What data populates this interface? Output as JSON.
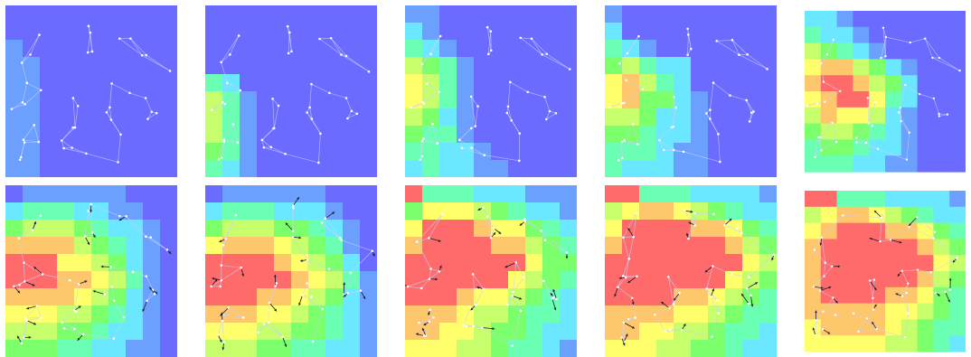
{
  "figure": {
    "panels": [
      {
        "id": 1,
        "grid": [
          "0000000000",
          "0000000000",
          "1000000000",
          "1100000000",
          "1100000000",
          "1100000000",
          "1100000000",
          "1100000000",
          "1100000000",
          "1100000000"
        ]
      },
      {
        "id": 2,
        "grid": [
          "0000000000",
          "0000000000",
          "0000000000",
          "0000000000",
          "3200000000",
          "5310000000",
          "5310000000",
          "5310000000",
          "4310000000",
          "3210000000"
        ]
      },
      {
        "id": 3,
        "grid": [
          "1100000000",
          "2100000000",
          "3210000000",
          "5431000000",
          "6531000000",
          "6531000000",
          "5421000000",
          "4331000000",
          "3322100000",
          "2322110000"
        ]
      },
      {
        "id": 4,
        "grid": [
          "1000000000",
          "2000000000",
          "3210000000",
          "4532200000",
          "6753200000",
          "6744210000",
          "5542210000",
          "4432210000",
          "3332110000",
          "3222110000"
        ]
      },
      {
        "id": 5,
        "grid": [
          "2210000000",
          "3221000000",
          "5432100000",
          "6775421000",
          "7887542000",
          "6788632000",
          "5766521000",
          "4554321000",
          "3443221000",
          "3332211000"
        ]
      },
      {
        "id": 6,
        "grid": [
          "0111111000",
          "2333221100",
          "4555432210",
          "7777543210",
          "8886654210",
          "8887765310",
          "7777654210",
          "6665543210",
          "5554432210",
          "4443322110"
        ]
      },
      {
        "id": 7,
        "grid": [
          "0111111000",
          "2333222100",
          "4555443210",
          "6777654310",
          "8888765420",
          "8888876531",
          "8887765421",
          "7776654321",
          "6665544321",
          "5554433221"
        ]
      },
      {
        "id": 8,
        "grid": [
          "8333222111",
          "4666543221",
          "6888766432",
          "7888877543",
          "8888888644",
          "8888886543",
          "8887665432",
          "7776554332",
          "7766544322",
          "6665543321"
        ]
      },
      {
        "id": 9,
        "grid": [
          "8833322221",
          "5677654322",
          "6888877643",
          "7888888754",
          "8888888865",
          "8888888654",
          "8888776543",
          "7777665433",
          "7766554332",
          "6665544322"
        ]
      },
      {
        "id": 10,
        "grid": [
          "8833322221",
          "5677654322",
          "6788877643",
          "7888888754",
          "7888888865",
          "7888888754",
          "7888877643",
          "7777766543",
          "6777765433",
          "6666655432"
        ]
      }
    ]
  },
  "colors": {
    "palette": [
      "#6b6bff",
      "#6ba0ff",
      "#6be8ff",
      "#6bffb4",
      "#7bff6b",
      "#c6ff6b",
      "#ffff6b",
      "#ffc76b",
      "#ff6b6b"
    ],
    "node": "#ffffff",
    "edge": "#c8d0ff",
    "arrow": "#1a1a2e"
  }
}
